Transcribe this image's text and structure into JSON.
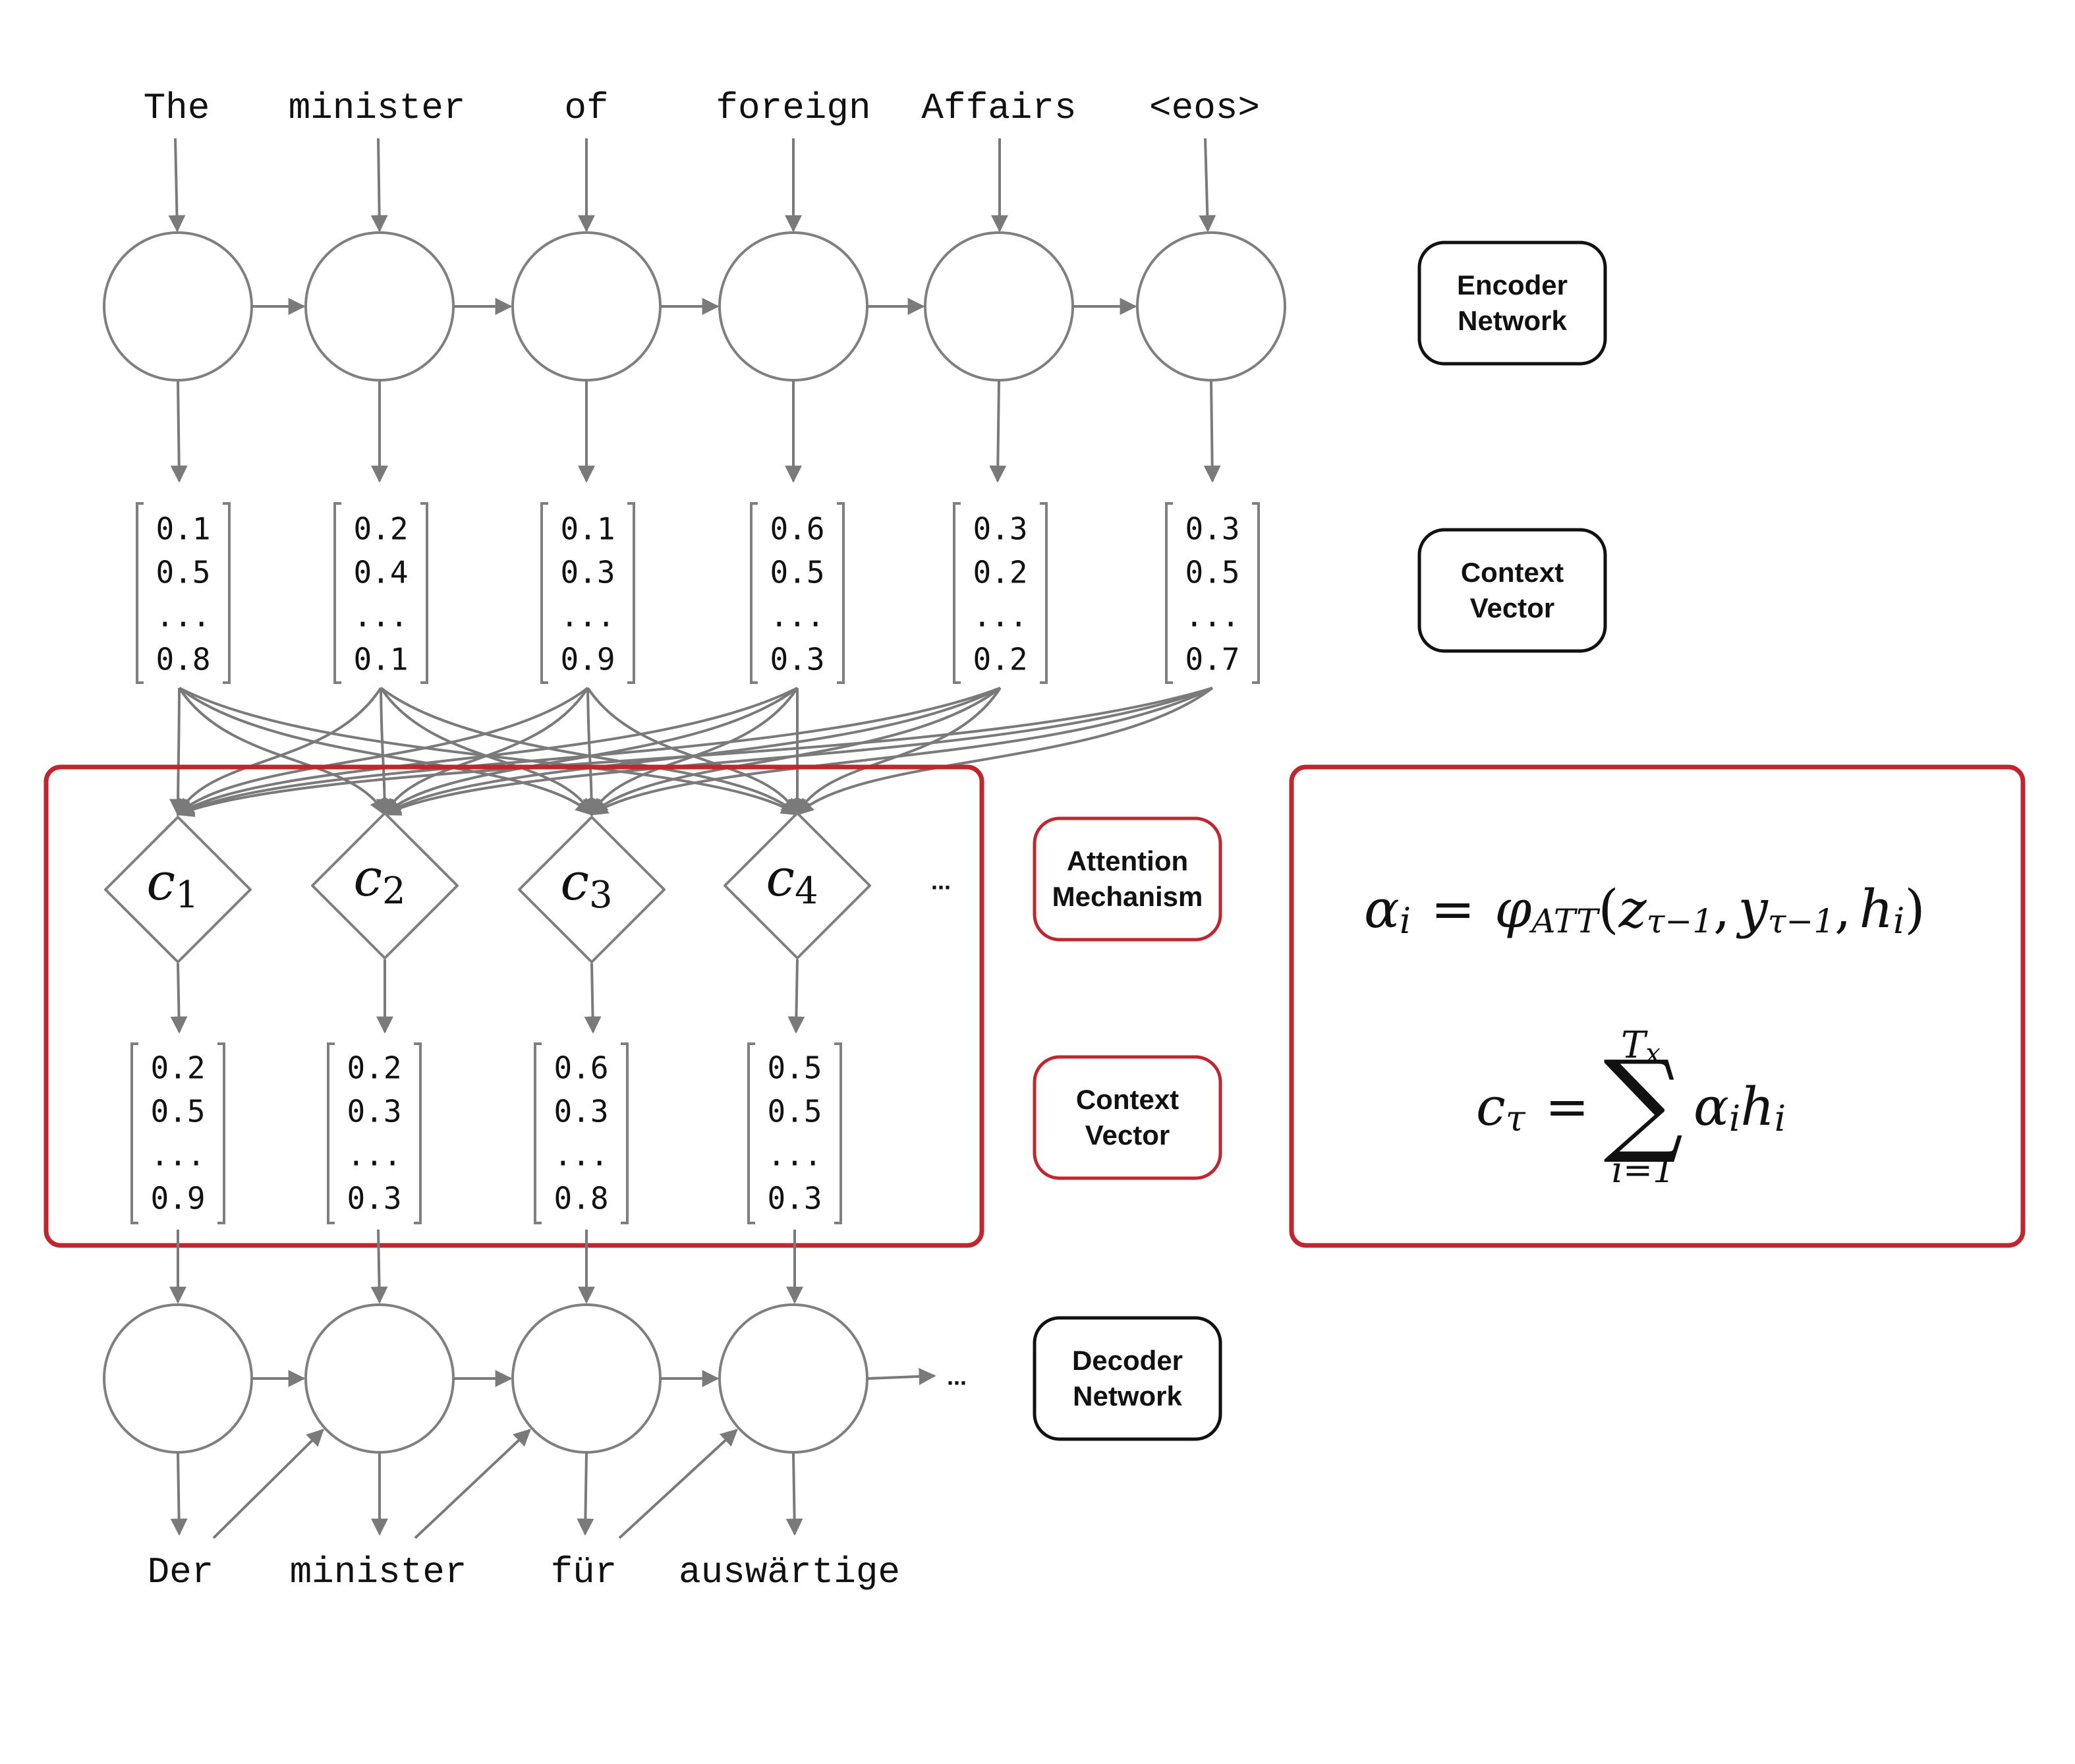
{
  "encoder": {
    "input_words": [
      "The",
      "minister",
      "of",
      "foreign",
      "Affairs",
      "<eos>"
    ],
    "context_vectors": [
      [
        "0.1",
        "0.5",
        "...",
        "0.8"
      ],
      [
        "0.2",
        "0.4",
        "...",
        "0.1"
      ],
      [
        "0.1",
        "0.3",
        "...",
        "0.9"
      ],
      [
        "0.6",
        "0.5",
        "...",
        "0.3"
      ],
      [
        "0.3",
        "0.2",
        "...",
        "0.2"
      ],
      [
        "0.3",
        "0.5",
        "...",
        "0.7"
      ]
    ]
  },
  "attention": {
    "nodes": [
      {
        "base": "c",
        "sub": "1"
      },
      {
        "base": "c",
        "sub": "2"
      },
      {
        "base": "c",
        "sub": "3"
      },
      {
        "base": "c",
        "sub": "4"
      }
    ],
    "ellipsis": "...",
    "context_vectors": [
      [
        "0.2",
        "0.5",
        "...",
        "0.9"
      ],
      [
        "0.2",
        "0.3",
        "...",
        "0.3"
      ],
      [
        "0.6",
        "0.3",
        "...",
        "0.8"
      ],
      [
        "0.5",
        "0.5",
        "...",
        "0.3"
      ]
    ]
  },
  "decoder": {
    "output_words": [
      "Der",
      "minister",
      "für",
      "auswärtige"
    ],
    "ellipsis": "..."
  },
  "labels": {
    "encoder_network": [
      "Encoder",
      "Network"
    ],
    "encoder_context_vector": [
      "Context",
      "Vector"
    ],
    "attention_mechanism": [
      "Attention",
      "Mechanism"
    ],
    "attention_context_vector": [
      "Context",
      "Vector"
    ],
    "decoder_network": [
      "Decoder",
      "Network"
    ]
  },
  "formulas": {
    "alpha": {
      "lhs": "α",
      "lhs_sub": "i",
      "eq": "=",
      "phi": "φ",
      "phi_sub": "ATT",
      "open": "(",
      "z": "z",
      "z_sub": "τ−1",
      "comma1": ",",
      "y": "y",
      "y_sub": "τ−1",
      "comma2": ",",
      "h": "h",
      "h_sub": "i",
      "close": ")"
    },
    "context": {
      "lhs": "c",
      "lhs_sub": "τ",
      "eq": "=",
      "sum": "∑",
      "upper": "T",
      "upper_sub": "x",
      "lower": "i=1",
      "alpha": "α",
      "alpha_sub": "i",
      "h": "h",
      "h_sub": "i"
    }
  },
  "colors": {
    "node_stroke": "#7f7f7f",
    "arrow": "#7a7a7a",
    "highlight_red": "#c0262d",
    "text": "#111111"
  }
}
